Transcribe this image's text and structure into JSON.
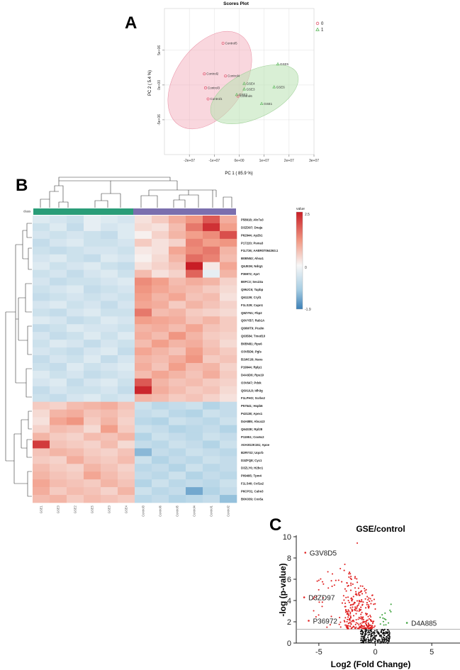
{
  "panels": {
    "A": {
      "letter": "A",
      "chart_data": {
        "type": "scatter",
        "title": "Scores Plot",
        "xlabel": "PC 1 ( 85.9 %)",
        "ylabel": "PC 2 ( 5.4 %)",
        "xlim": [
          -30000000,
          30000000
        ],
        "ylim": [
          -10000000,
          11000000
        ],
        "x_ticks": [
          -20000000,
          -10000000,
          0,
          10000000,
          20000000,
          30000000
        ],
        "x_tick_labels": [
          "-2e+07",
          "-1e+07",
          "0e+00",
          "1e+07",
          "2e+07",
          "3e+07"
        ],
        "y_ticks": [
          -5000000,
          0,
          5000000
        ],
        "y_tick_labels": [
          "-5e+06",
          "0e+00",
          "5e+06"
        ],
        "legend": {
          "position": "top-right",
          "entries": [
            {
              "label": "0",
              "color": "#e0566f",
              "marker": "circle"
            },
            {
              "label": "1",
              "color": "#5fb85f",
              "marker": "triangle"
            }
          ]
        },
        "series": [
          {
            "name": "0",
            "color": "#e0566f",
            "marker": "circle",
            "points": [
              {
                "label": "Control5",
                "x": -6500000,
                "y": 6000000
              },
              {
                "label": "Control2",
                "x": -14000000,
                "y": 1600000
              },
              {
                "label": "Control4",
                "x": -5500000,
                "y": 1300000
              },
              {
                "label": "Control3",
                "x": -13500000,
                "y": -400000
              },
              {
                "label": "Control1",
                "x": -12500000,
                "y": -2000000
              },
              {
                "label": "Control6",
                "x": -500000,
                "y": -1600000
              }
            ]
          },
          {
            "name": "1",
            "color": "#5fb85f",
            "marker": "triangle",
            "points": [
              {
                "label": "GSE5",
                "x": 15500000,
                "y": 3000000
              },
              {
                "label": "GSE4",
                "x": 2000000,
                "y": 200000
              },
              {
                "label": "GSE6",
                "x": 14000000,
                "y": -300000
              },
              {
                "label": "GSE3",
                "x": 2000000,
                "y": -600000
              },
              {
                "label": "GSE2",
                "x": -1000000,
                "y": -1400000
              },
              {
                "label": "GSE1",
                "x": 9000000,
                "y": -2700000
              }
            ]
          }
        ]
      }
    },
    "B": {
      "letter": "B",
      "chart_data": {
        "type": "heatmap",
        "class_label": "class",
        "colorbar": {
          "title": "value",
          "max_label": "2.5",
          "mid_label": "0",
          "min_label": "-1.9",
          "max": 2.5,
          "min": -1.9
        },
        "class_colors": {
          "GSE": "#2a9d78",
          "Control": "#7b6fae"
        },
        "columns": [
          "GSE1",
          "GSE3",
          "GSE2",
          "GSE5",
          "GSE3",
          "GSE4",
          "Control3",
          "Control6",
          "Control5",
          "Control4",
          "Control1",
          "Control2"
        ],
        "rows": [
          "P58918; Akr7a3",
          "D3ZD97; Dnaja",
          "P62944; Ap2b1",
          "P17220; Psma3",
          "F1LT36; AABR07064363.1",
          "B0BN53; Ahsa1",
          "Q6JE36; Ndrg1",
          "P36972; Aprt",
          "B0FC3; Sec23a",
          "Q99JC6; Tapbp",
          "Q61139; Cryl1",
          "F1LS29; Capn1",
          "Q8ZYN1; Fbp2",
          "Q6VYB7; Rab1A",
          "Q66WT9; Pcalm",
          "Q63584; Tmed10",
          "B0BN81; Rps6",
          "O3VBD6; Pgls",
          "B1WC26; Nans",
          "P19944; Rplp1",
          "D4A6D6; Rps19",
          "O3V647; Pdxk",
          "Q6XUL8; Idh3g",
          "F1LPHO; Scrbs2",
          "P57541; Hspb6",
          "P43138; Apex1",
          "D4A885; Abca13",
          "Q6432E; Rpl28",
          "P11951; Cox6c2",
          "A0A0G2K151; Apoe",
          "B2RYS2; Uqcrb",
          "D3ZFQ8; Cyc1",
          "D3ZLY6; H2bc1",
          "P09495; Tpm4",
          "F1LS40; Col1a2",
          "P6CP31; Calm3",
          "B0K039; Cox5a"
        ],
        "values": [
          [
            -0.3,
            -0.4,
            -0.5,
            -0.2,
            -0.3,
            -0.4,
            0.3,
            0.6,
            1.0,
            1.3,
            1.9,
            1.0
          ],
          [
            -0.5,
            -0.3,
            -0.6,
            -0.2,
            -0.4,
            -0.3,
            0.4,
            0.3,
            0.8,
            1.6,
            2.3,
            1.2
          ],
          [
            -0.4,
            -0.5,
            -0.4,
            -0.5,
            -0.6,
            -0.3,
            0.1,
            0.5,
            0.9,
            1.2,
            1.4,
            2.0
          ],
          [
            -0.6,
            -0.4,
            -0.3,
            -0.5,
            -0.5,
            -0.4,
            0.6,
            0.3,
            0.5,
            1.5,
            1.2,
            1.3
          ],
          [
            -0.5,
            -0.6,
            -0.5,
            -0.4,
            -0.4,
            -0.5,
            0.2,
            0.3,
            1.1,
            1.4,
            1.6,
            0.9
          ],
          [
            -0.4,
            -0.3,
            -0.5,
            -0.6,
            -0.3,
            -0.4,
            0.1,
            0.4,
            0.9,
            1.7,
            1.5,
            0.8
          ],
          [
            -0.3,
            -0.5,
            -0.4,
            -0.3,
            -0.5,
            -0.6,
            0.3,
            0.5,
            0.7,
            2.5,
            0.2,
            1.1
          ],
          [
            -0.5,
            -0.4,
            -0.6,
            -0.4,
            -0.3,
            -0.5,
            0.8,
            0.3,
            0.5,
            1.8,
            -0.2,
            0.9
          ],
          [
            -0.4,
            -0.6,
            -0.5,
            -0.5,
            -0.4,
            -0.3,
            1.4,
            1.2,
            0.8,
            1.0,
            0.9,
            0.5
          ],
          [
            -0.5,
            -0.4,
            -0.3,
            -0.6,
            -0.5,
            -0.4,
            1.3,
            1.1,
            0.9,
            0.8,
            0.6,
            0.4
          ],
          [
            -0.6,
            -0.5,
            -0.4,
            -0.5,
            -0.4,
            -0.5,
            1.2,
            0.9,
            1.1,
            0.7,
            0.8,
            0.3
          ],
          [
            -0.4,
            -0.3,
            -0.5,
            -0.4,
            -0.6,
            -0.4,
            1.1,
            1.0,
            0.6,
            0.9,
            0.7,
            0.5
          ],
          [
            -0.5,
            -0.6,
            -0.4,
            -0.3,
            -0.5,
            -0.5,
            1.6,
            0.8,
            0.9,
            0.6,
            0.5,
            0.4
          ],
          [
            -0.3,
            -0.4,
            -0.6,
            -0.5,
            -0.3,
            -0.4,
            1.2,
            1.1,
            1.0,
            0.7,
            0.9,
            0.6
          ],
          [
            -0.6,
            -0.5,
            -0.3,
            -0.4,
            -0.4,
            -0.5,
            0.9,
            1.0,
            0.8,
            1.1,
            0.7,
            0.6
          ],
          [
            -0.4,
            -0.6,
            -0.5,
            -0.3,
            -0.5,
            -0.3,
            1.0,
            0.8,
            1.3,
            0.9,
            0.6,
            0.5
          ],
          [
            -0.5,
            -0.3,
            -0.4,
            -0.6,
            -0.4,
            -0.5,
            0.8,
            1.2,
            0.9,
            1.0,
            0.7,
            0.4
          ],
          [
            -0.4,
            -0.5,
            -0.6,
            -0.4,
            -0.3,
            -0.6,
            1.1,
            0.9,
            0.7,
            1.2,
            0.8,
            0.6
          ],
          [
            -0.6,
            -0.4,
            -0.5,
            -0.3,
            -0.6,
            -0.4,
            0.9,
            0.8,
            1.0,
            1.3,
            0.6,
            0.7
          ],
          [
            -0.5,
            -0.6,
            -0.3,
            -0.5,
            -0.4,
            -0.3,
            1.0,
            0.7,
            1.2,
            0.8,
            0.9,
            0.5
          ],
          [
            -0.3,
            -0.5,
            -0.4,
            -0.6,
            -0.5,
            -0.4,
            0.8,
            1.1,
            0.9,
            0.7,
            1.0,
            0.6
          ],
          [
            -0.4,
            -0.3,
            -0.6,
            -0.4,
            -0.3,
            -0.5,
            1.9,
            0.9,
            0.7,
            0.8,
            0.6,
            0.5
          ],
          [
            -0.6,
            -0.4,
            -0.5,
            -0.5,
            -0.4,
            -0.6,
            2.4,
            1.0,
            0.8,
            0.6,
            0.7,
            0.4
          ],
          [
            -0.5,
            -0.6,
            -0.4,
            -0.3,
            -0.5,
            -0.4,
            0.9,
            0.8,
            0.6,
            0.7,
            0.5,
            0.3
          ],
          [
            0.6,
            0.5,
            0.8,
            0.9,
            1.0,
            0.7,
            -0.5,
            -0.7,
            -0.6,
            -0.5,
            -0.8,
            -0.6
          ],
          [
            0.4,
            0.9,
            1.0,
            0.7,
            0.8,
            0.6,
            -0.6,
            -0.5,
            -0.7,
            -0.8,
            -0.5,
            -0.6
          ],
          [
            0.3,
            1.1,
            1.3,
            0.6,
            0.9,
            0.5,
            -0.7,
            -0.8,
            -0.5,
            -0.6,
            -0.7,
            -0.5
          ],
          [
            0.5,
            0.8,
            0.7,
            0.4,
            1.2,
            0.6,
            -0.5,
            -0.6,
            -0.8,
            -0.7,
            -0.6,
            -0.8
          ],
          [
            0.9,
            0.6,
            0.5,
            0.8,
            0.7,
            0.9,
            -0.8,
            -0.5,
            -0.6,
            -0.7,
            -0.5,
            -0.6
          ],
          [
            2.2,
            0.7,
            0.6,
            0.5,
            0.8,
            0.4,
            -0.6,
            -0.7,
            -0.5,
            -0.6,
            -0.8,
            -0.5
          ],
          [
            0.7,
            0.9,
            0.8,
            0.6,
            0.5,
            0.7,
            -1.2,
            -0.6,
            -0.7,
            -0.5,
            -0.6,
            -0.7
          ],
          [
            0.6,
            0.5,
            1.0,
            0.7,
            0.6,
            0.8,
            -0.5,
            -0.8,
            -0.6,
            -0.7,
            -0.5,
            -0.6
          ],
          [
            0.8,
            0.6,
            0.5,
            0.9,
            0.7,
            0.5,
            -0.7,
            -0.6,
            -0.8,
            -0.5,
            -0.7,
            -0.6
          ],
          [
            0.9,
            0.7,
            0.6,
            1.1,
            0.8,
            0.6,
            -0.6,
            -0.7,
            -0.5,
            -0.8,
            -0.6,
            -0.7
          ],
          [
            1.1,
            0.8,
            0.7,
            0.6,
            0.9,
            0.7,
            -0.8,
            -0.5,
            -0.7,
            -0.6,
            -0.7,
            -0.5
          ],
          [
            1.0,
            0.6,
            0.8,
            0.7,
            0.5,
            0.9,
            -0.5,
            -0.7,
            -0.6,
            -1.4,
            -0.8,
            -0.6
          ],
          [
            0.8,
            0.9,
            0.6,
            0.8,
            0.7,
            0.6,
            -0.7,
            -0.6,
            -0.8,
            -0.7,
            -0.6,
            -1.1
          ]
        ]
      }
    },
    "C": {
      "letter": "C",
      "chart_data": {
        "type": "scatter",
        "title": "GSE/control",
        "xlabel": "Log2 (Fold Change)",
        "ylabel": "-log (p-value)",
        "xlim": [
          -7,
          7.5
        ],
        "ylim": [
          0,
          10
        ],
        "x_ticks": [
          -5,
          0,
          5
        ],
        "x_tick_labels": [
          "-5",
          "0",
          "5"
        ],
        "y_ticks": [
          0,
          2,
          4,
          6,
          8,
          10
        ],
        "y_tick_labels": [
          "0",
          "2",
          "4",
          "6",
          "8",
          "10"
        ],
        "threshold_y": 1.3,
        "annotations": [
          {
            "label": "G3V8D5",
            "x": -6.2,
            "y": 8.5
          },
          {
            "label": "D3ZD97",
            "x": -6.3,
            "y": 4.3
          },
          {
            "label": "P36972",
            "x": -5.9,
            "y": 2.1
          },
          {
            "label": "D4A885",
            "x": 2.8,
            "y": 1.9
          }
        ],
        "colors": {
          "down": "#e02020",
          "up": "#3fa33f",
          "ns": "#111111"
        }
      }
    }
  }
}
